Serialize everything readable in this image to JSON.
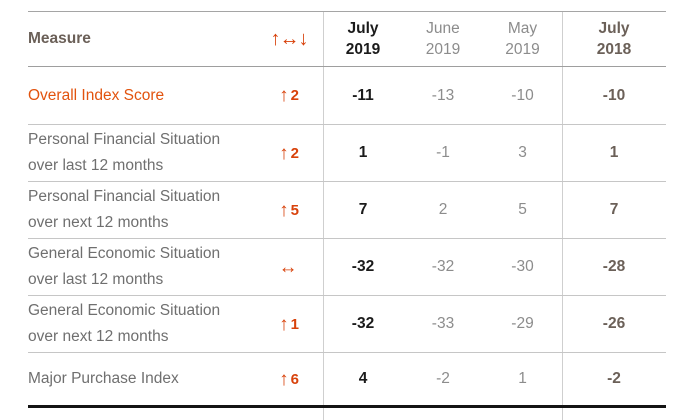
{
  "colors": {
    "accent_orange": "#e2530e",
    "arrow_orange": "#d8420b",
    "current_month_black": "#1b1b1b",
    "mid_month_gray": "#8c8c8c",
    "prior_year_warm_gray": "#6b6058",
    "row_divider_gray": "#c6c6c6",
    "bottom_rule_black": "#141414"
  },
  "header": {
    "measure": "Measure",
    "trend_icons": "↑↔↓",
    "columns": [
      "July\n2019",
      "June\n2019",
      "May\n2019",
      "July\n2018"
    ]
  },
  "rows": [
    {
      "measure": "Overall Index Score",
      "arrow": "↑",
      "change": "2",
      "values": [
        "-11",
        "-13",
        "-10",
        "-10"
      ]
    },
    {
      "measure": "Personal Financial Situation\nover last 12 months",
      "arrow": "↑",
      "change": "2",
      "values": [
        "1",
        "-1",
        "3",
        "1"
      ]
    },
    {
      "measure": "Personal Financial Situation\nover next 12 months",
      "arrow": "↑",
      "change": "5",
      "values": [
        "7",
        "2",
        "5",
        "7"
      ]
    },
    {
      "measure": "General Economic Situation\nover last 12 months",
      "arrow": "↔",
      "change": "",
      "values": [
        "-32",
        "-32",
        "-30",
        "-28"
      ]
    },
    {
      "measure": "General Economic Situation\nover next 12 months",
      "arrow": "↑",
      "change": "1",
      "values": [
        "-32",
        "-33",
        "-29",
        "-26"
      ]
    },
    {
      "measure": "Major Purchase Index",
      "arrow": "↑",
      "change": "6",
      "values": [
        "4",
        "-2",
        "1",
        "-2"
      ]
    }
  ],
  "chart_data": {
    "type": "table",
    "title": "Consumer Confidence Index measures",
    "columns": [
      "Measure",
      "Change",
      "July 2019",
      "June 2019",
      "May 2019",
      "July 2018"
    ],
    "rows": [
      [
        "Overall Index Score",
        "+2",
        -11,
        -13,
        -10,
        -10
      ],
      [
        "Personal Financial Situation over last 12 months",
        "+2",
        1,
        -1,
        3,
        1
      ],
      [
        "Personal Financial Situation over next 12 months",
        "+5",
        7,
        2,
        5,
        7
      ],
      [
        "General Economic Situation over last 12 months",
        "0",
        -32,
        -32,
        -30,
        -28
      ],
      [
        "General Economic Situation over next 12 months",
        "+1",
        -32,
        -33,
        -29,
        -26
      ],
      [
        "Major Purchase Index",
        "+6",
        4,
        -2,
        1,
        -2
      ]
    ]
  }
}
